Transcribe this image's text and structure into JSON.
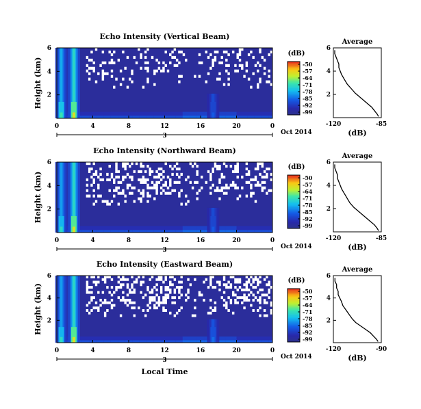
{
  "chart_data": [
    {
      "type": "heatmap",
      "title": "Echo Intensity (Vertical Beam)",
      "ylabel": "Height (km)",
      "x_ticks": [
        "0",
        "4",
        "8",
        "12",
        "16",
        "20",
        "0"
      ],
      "xlim": [
        0,
        24
      ],
      "ylim": [
        0,
        6
      ],
      "y_ticks": [
        "2",
        "4",
        "6"
      ],
      "date_label": "3",
      "month_label": "Oct 2014",
      "colorbar": {
        "unit": "(dB)",
        "ticks": [
          "-50",
          "-57",
          "-64",
          "-71",
          "-78",
          "-85",
          "-92",
          "-99"
        ],
        "range": [
          -99,
          -50
        ]
      },
      "hot_columns": [
        {
          "hour": 0.5,
          "strength": 0.75
        },
        {
          "hour": 1.9,
          "strength": 1.0
        },
        {
          "hour": 17.4,
          "strength": 0.35
        }
      ],
      "gap_density": 0.18,
      "gap_seed": 11
    },
    {
      "type": "heatmap",
      "title": "Echo Intensity (Northward Beam)",
      "ylabel": "Height (km)",
      "x_ticks": [
        "0",
        "4",
        "8",
        "12",
        "16",
        "20",
        "0"
      ],
      "xlim": [
        0,
        24
      ],
      "ylim": [
        0,
        6
      ],
      "y_ticks": [
        "2",
        "4",
        "6"
      ],
      "date_label": "3",
      "month_label": "Oct 2014",
      "colorbar": {
        "unit": "(dB)",
        "ticks": [
          "-50",
          "-57",
          "-64",
          "-71",
          "-78",
          "-85",
          "-92",
          "-99"
        ],
        "range": [
          -99,
          -50
        ]
      },
      "hot_columns": [
        {
          "hour": 0.5,
          "strength": 0.7
        },
        {
          "hour": 1.9,
          "strength": 1.0
        },
        {
          "hour": 17.4,
          "strength": 0.35
        }
      ],
      "gap_density": 0.28,
      "gap_seed": 23
    },
    {
      "type": "heatmap",
      "title": "Echo Intensity (Eastward Beam)",
      "ylabel": "Height (km)",
      "xlabel": "Local Time",
      "x_ticks": [
        "0",
        "4",
        "8",
        "12",
        "16",
        "20",
        "0"
      ],
      "xlim": [
        0,
        24
      ],
      "ylim": [
        0,
        6
      ],
      "y_ticks": [
        "2",
        "4",
        "6"
      ],
      "date_label": "3",
      "month_label": "Oct 2014",
      "colorbar": {
        "unit": "(dB)",
        "ticks": [
          "-50",
          "-57",
          "-64",
          "-71",
          "-78",
          "-85",
          "-92",
          "-99"
        ],
        "range": [
          -99,
          -50
        ]
      },
      "hot_columns": [
        {
          "hour": 0.5,
          "strength": 0.7
        },
        {
          "hour": 1.9,
          "strength": 1.0
        },
        {
          "hour": 17.4,
          "strength": 0.4
        }
      ],
      "gap_density": 0.33,
      "gap_seed": 37
    },
    {
      "type": "line",
      "title": "Average",
      "xlabel": "(dB)",
      "x_ticks": [
        "-120",
        "-85"
      ],
      "xlim": [
        -120,
        -85
      ],
      "y_ticks": [
        "2",
        "4",
        "6"
      ],
      "ylim": [
        0,
        6
      ],
      "x": [
        -87,
        -88,
        -90,
        -92,
        -95,
        -98,
        -101,
        -104,
        -107,
        -110,
        -112,
        -114,
        -115,
        -116,
        -116,
        -117,
        -118,
        -119,
        -119
      ],
      "y": [
        0.1,
        0.3,
        0.6,
        0.9,
        1.2,
        1.5,
        1.8,
        2.1,
        2.5,
        2.9,
        3.3,
        3.7,
        4.0,
        4.3,
        4.6,
        4.9,
        5.2,
        5.5,
        5.8
      ]
    },
    {
      "type": "line",
      "title": "Average",
      "xlabel": "(dB)",
      "x_ticks": [
        "-120",
        "-85"
      ],
      "xlim": [
        -120,
        -85
      ],
      "y_ticks": [
        "2",
        "4",
        "6"
      ],
      "ylim": [
        0,
        6
      ],
      "x": [
        -87,
        -88,
        -90,
        -93,
        -96,
        -99,
        -102,
        -105,
        -108,
        -110,
        -112,
        -114,
        -115,
        -116,
        -117,
        -117,
        -118,
        -119,
        -119
      ],
      "y": [
        0.1,
        0.3,
        0.6,
        0.9,
        1.2,
        1.5,
        1.8,
        2.1,
        2.5,
        2.9,
        3.3,
        3.7,
        4.0,
        4.3,
        4.6,
        4.9,
        5.2,
        5.5,
        5.8
      ]
    },
    {
      "type": "line",
      "title": "Average",
      "xlabel": "(dB)",
      "x_ticks": [
        "-120",
        "-90"
      ],
      "xlim": [
        -120,
        -90
      ],
      "y_ticks": [
        "2",
        "4",
        "6"
      ],
      "ylim": [
        0,
        6
      ],
      "x": [
        -92,
        -93,
        -95,
        -97,
        -100,
        -103,
        -106,
        -108,
        -110,
        -112,
        -114,
        -115,
        -116,
        -117,
        -117,
        -118,
        -118,
        -119,
        -119
      ],
      "y": [
        0.1,
        0.3,
        0.6,
        0.9,
        1.2,
        1.5,
        1.8,
        2.1,
        2.5,
        2.9,
        3.3,
        3.7,
        4.0,
        4.3,
        4.6,
        4.9,
        5.2,
        5.5,
        5.8
      ]
    }
  ]
}
